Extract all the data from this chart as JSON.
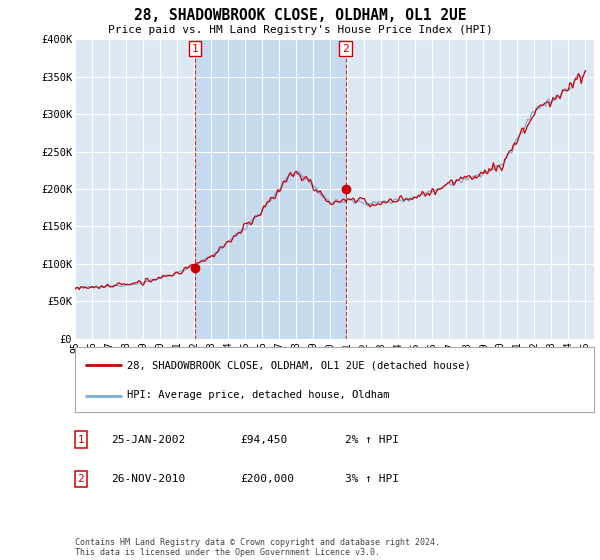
{
  "title": "28, SHADOWBROOK CLOSE, OLDHAM, OL1 2UE",
  "subtitle": "Price paid vs. HM Land Registry's House Price Index (HPI)",
  "ylabel_ticks": [
    "£0",
    "£50K",
    "£100K",
    "£150K",
    "£200K",
    "£250K",
    "£300K",
    "£350K",
    "£400K"
  ],
  "ytick_values": [
    0,
    50000,
    100000,
    150000,
    200000,
    250000,
    300000,
    350000,
    400000
  ],
  "ylim": [
    0,
    400000
  ],
  "xlim_start": 1995.0,
  "xlim_end": 2025.5,
  "background_color": "#dce9f5",
  "outer_bg_color": "#ffffff",
  "red_line_color": "#cc0000",
  "blue_line_color": "#7aaed6",
  "shade_color": "#c5d9ef",
  "grid_color": "#ffffff",
  "transaction1_date": "25-JAN-2002",
  "transaction1_price": 94450,
  "transaction1_hpi": "2% ↑ HPI",
  "transaction1_year": 2002.07,
  "transaction2_date": "26-NOV-2010",
  "transaction2_price": 200000,
  "transaction2_hpi": "3% ↑ HPI",
  "transaction2_year": 2010.9,
  "legend_label_red": "28, SHADOWBROOK CLOSE, OLDHAM, OL1 2UE (detached house)",
  "legend_label_blue": "HPI: Average price, detached house, Oldham",
  "footer": "Contains HM Land Registry data © Crown copyright and database right 2024.\nThis data is licensed under the Open Government Licence v3.0.",
  "marker_label_color": "#cc0000"
}
